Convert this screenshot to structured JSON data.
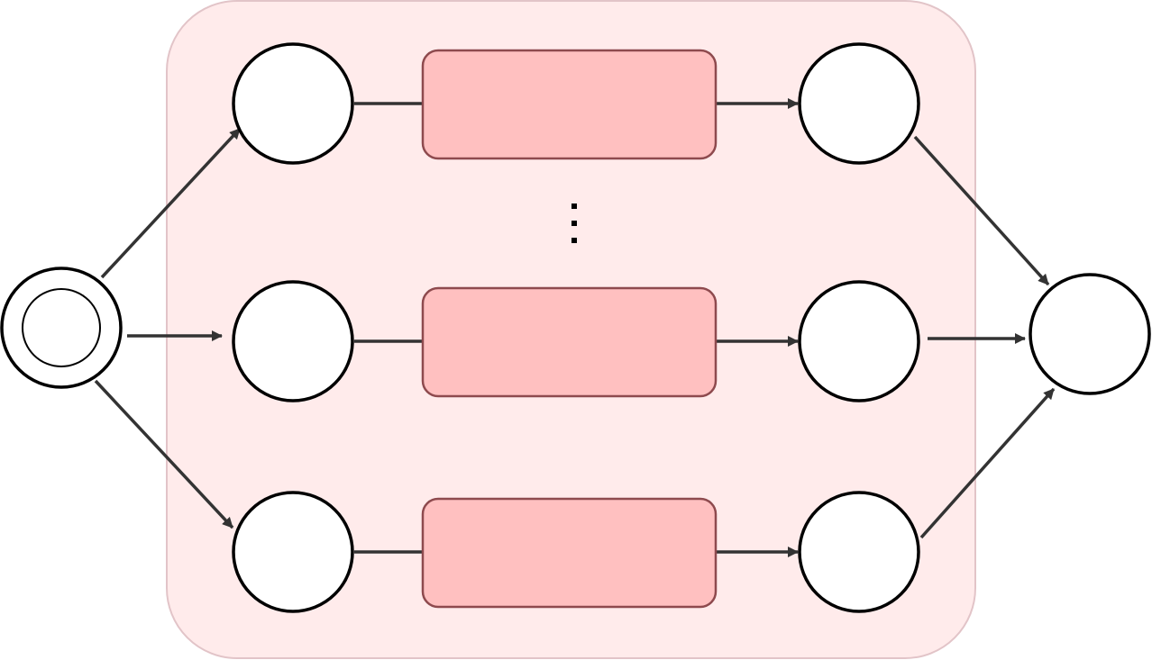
{
  "diagram": {
    "colors": {
      "region_fill": "#FFEBEB",
      "region_stroke": "#E2C4C8",
      "box_fill": "#FFC0C0",
      "box_stroke": "#8E4A4E",
      "node_fill": "#FFFFFF",
      "node_stroke": "#000000",
      "edge": "#333333",
      "ellipsis": "#000000"
    },
    "nodes": [
      {
        "id": "start",
        "kind": "double-circle-state",
        "label": ""
      },
      {
        "id": "row1-in",
        "kind": "state",
        "label": ""
      },
      {
        "id": "row2-in",
        "kind": "state",
        "label": ""
      },
      {
        "id": "row3-in",
        "kind": "state",
        "label": ""
      },
      {
        "id": "row1-out",
        "kind": "state",
        "label": ""
      },
      {
        "id": "row2-out",
        "kind": "state",
        "label": ""
      },
      {
        "id": "row3-out",
        "kind": "state",
        "label": ""
      },
      {
        "id": "end",
        "kind": "state",
        "label": ""
      }
    ],
    "boxes": [
      {
        "id": "row1-box",
        "label": ""
      },
      {
        "id": "row2-box",
        "label": ""
      },
      {
        "id": "row3-box",
        "label": ""
      }
    ],
    "edges": [
      {
        "from": "start",
        "to": "row1-in",
        "arrow": true
      },
      {
        "from": "start",
        "to": "row2-in",
        "arrow": true
      },
      {
        "from": "start",
        "to": "row3-in",
        "arrow": true
      },
      {
        "from": "row1-in",
        "to": "row1-box",
        "arrow": false
      },
      {
        "from": "row2-in",
        "to": "row2-box",
        "arrow": false
      },
      {
        "from": "row3-in",
        "to": "row3-box",
        "arrow": false
      },
      {
        "from": "row1-box",
        "to": "row1-out",
        "arrow": true
      },
      {
        "from": "row2-box",
        "to": "row2-out",
        "arrow": true
      },
      {
        "from": "row3-box",
        "to": "row3-out",
        "arrow": true
      },
      {
        "from": "row1-out",
        "to": "end",
        "arrow": true
      },
      {
        "from": "row2-out",
        "to": "end",
        "arrow": true
      },
      {
        "from": "row3-out",
        "to": "end",
        "arrow": true
      }
    ],
    "ellipsis": "vertical-dots"
  }
}
